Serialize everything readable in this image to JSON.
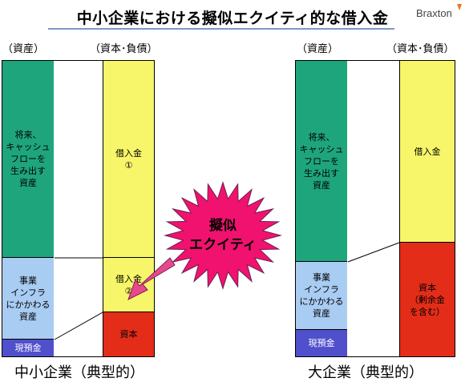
{
  "title": "中小企業における擬似エクイティ的な借入金",
  "logo": {
    "text": "Braxton",
    "accent_color": "#e87722"
  },
  "left": {
    "assets_header": "（資産）",
    "liabilities_header": "（資本･負債）",
    "caption": "中小企業（典型的）",
    "blocks": {
      "future_cf_assets": "将来、\nキャッシュ\nフローを\n生み出す\n資産",
      "infra_assets": "事業\nインフラ\nにかかわる\n資産",
      "cash": "現預金",
      "loan1": "借入金\n①",
      "loan2": "借入金\n②",
      "capital": "資本"
    }
  },
  "right": {
    "assets_header": "（資産）",
    "liabilities_header": "（資本･負債）",
    "caption": "大企業（典型的）",
    "blocks": {
      "future_cf_assets": "将来、\nキャッシュ\nフローを\n生み出す\n資産",
      "infra_assets": "事業\nインフラ\nにかかわる\n資産",
      "cash": "現預金",
      "loan": "借入金",
      "capital": "資本\n（剰余金\nを含む）"
    }
  },
  "callout": {
    "label": "擬似\nエクイティ",
    "star_color": "#f0126e",
    "arrow_color": "#e8488e"
  },
  "colors": {
    "green": "#1fa57c",
    "light_blue": "#a9ccf3",
    "dark_blue": "#5050cc",
    "yellow": "#f7f66a",
    "red": "#e32d19",
    "title_rule": "#7a9ac0"
  }
}
